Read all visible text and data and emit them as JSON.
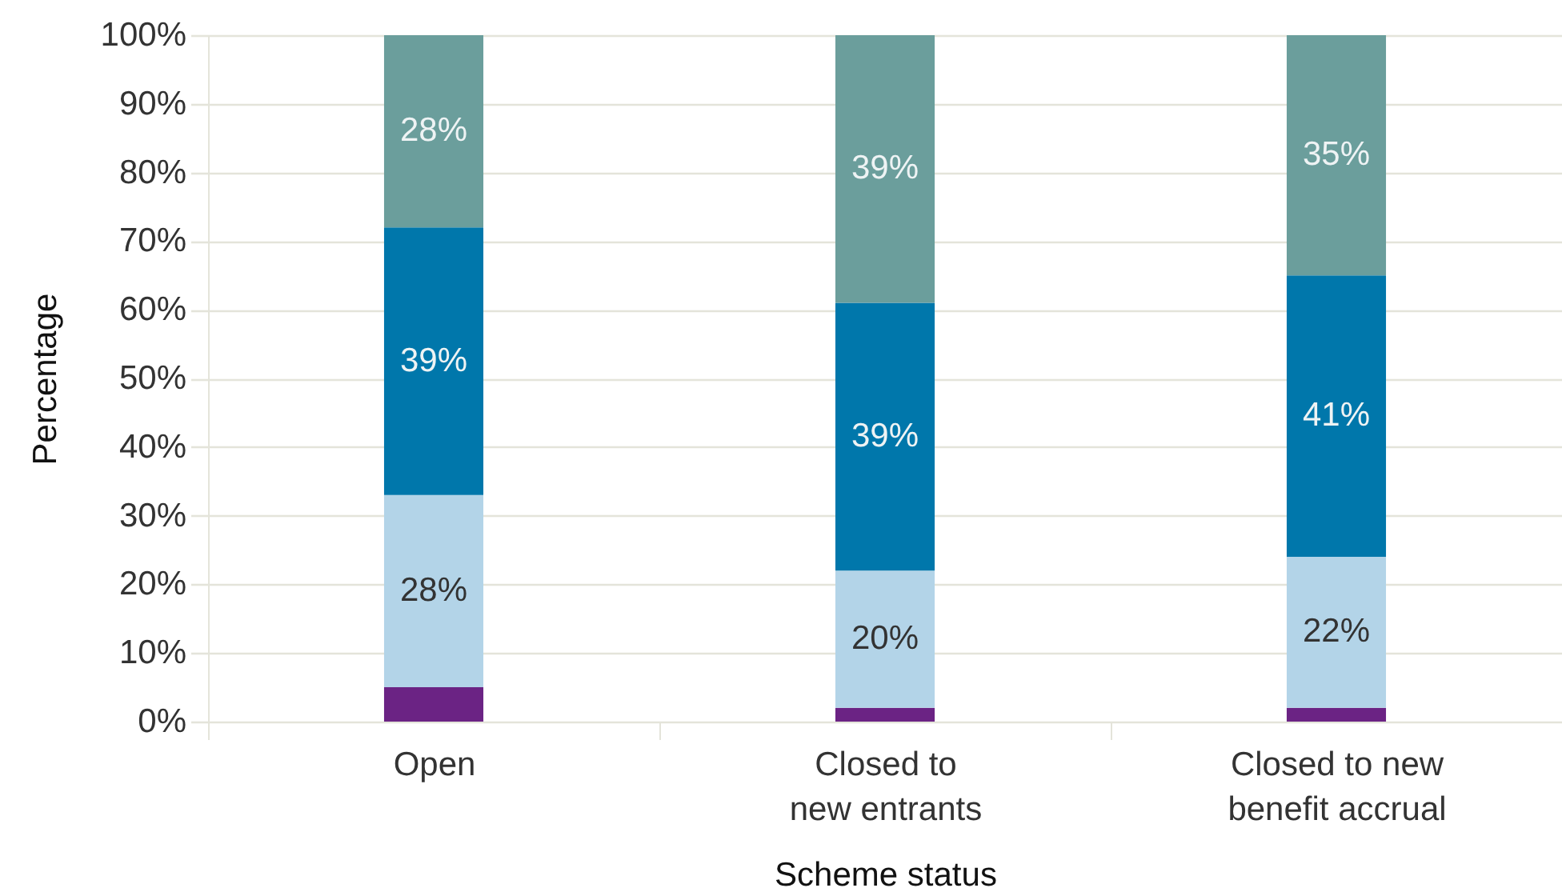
{
  "chart_data": {
    "type": "bar",
    "stacked": true,
    "xlabel": "Scheme status",
    "ylabel": "Percentage",
    "categories": [
      "Open",
      "Closed to\nnew entrants",
      "Closed to new\nbenefit accrual"
    ],
    "series": [
      {
        "color": "#6b2384",
        "values": [
          5,
          2,
          2
        ],
        "value_labels": [
          null,
          null,
          null
        ]
      },
      {
        "color": "#b3d4e8",
        "values": [
          28,
          20,
          22
        ],
        "value_labels": [
          "28%",
          "20%",
          "22%"
        ]
      },
      {
        "color": "#0077ab",
        "values": [
          39,
          39,
          41
        ],
        "value_labels": [
          "39%",
          "39%",
          "41%"
        ]
      },
      {
        "color": "#6b9e9c",
        "values": [
          28,
          39,
          35
        ],
        "value_labels": [
          "28%",
          "39%",
          "35%"
        ]
      }
    ],
    "ylim": [
      0,
      100
    ],
    "yticks": [
      {
        "value": 0,
        "label": "0%"
      },
      {
        "value": 10,
        "label": "10%"
      },
      {
        "value": 20,
        "label": "20%"
      },
      {
        "value": 30,
        "label": "30%"
      },
      {
        "value": 40,
        "label": "40%"
      },
      {
        "value": 50,
        "label": "50%"
      },
      {
        "value": 60,
        "label": "60%"
      },
      {
        "value": 70,
        "label": "70%"
      },
      {
        "value": 80,
        "label": "80%"
      },
      {
        "value": 90,
        "label": "90%"
      },
      {
        "value": 100,
        "label": "100%"
      }
    ],
    "grid": "y"
  }
}
